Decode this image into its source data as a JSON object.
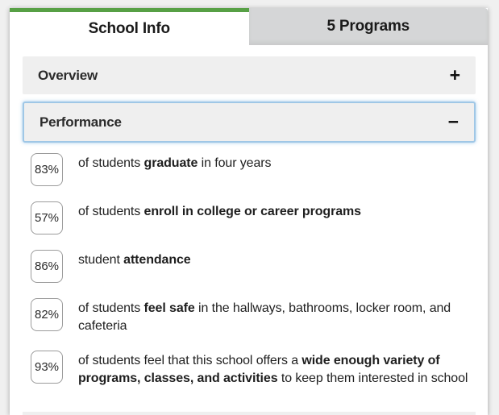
{
  "colors": {
    "accent_green": "#57a045",
    "inactive_tab_bg": "#d5d6d7",
    "page_bg": "#f0f0f0",
    "accordion_header_bg": "#efefef",
    "focus_outline_blue": "#9fc7e6",
    "badge_border": "#9b9b9b",
    "text": "#1f1f1f"
  },
  "tabs": [
    {
      "label": "School Info",
      "active": true
    },
    {
      "label": "5 Programs",
      "active": false
    }
  ],
  "accordion": [
    {
      "label": "Overview",
      "expanded": false,
      "toggle_icon": "+"
    },
    {
      "label": "Performance",
      "expanded": true,
      "toggle_icon": "−"
    }
  ],
  "performance_stats": [
    {
      "value": "83%",
      "parts": [
        {
          "t": "of students ",
          "b": false
        },
        {
          "t": "graduate",
          "b": true
        },
        {
          "t": " in four years",
          "b": false
        }
      ]
    },
    {
      "value": "57%",
      "parts": [
        {
          "t": "of students ",
          "b": false
        },
        {
          "t": "enroll in college or career programs",
          "b": true
        }
      ]
    },
    {
      "value": "86%",
      "parts": [
        {
          "t": "student ",
          "b": false
        },
        {
          "t": "attendance",
          "b": true
        }
      ]
    },
    {
      "value": "82%",
      "parts": [
        {
          "t": "of students ",
          "b": false
        },
        {
          "t": "feel safe",
          "b": true
        },
        {
          "t": " in the hallways, bathrooms, locker room, and cafeteria",
          "b": false
        }
      ]
    },
    {
      "value": "93%",
      "parts": [
        {
          "t": "of students feel that this school offers a ",
          "b": false
        },
        {
          "t": "wide enough variety of programs, classes, and activities",
          "b": true
        },
        {
          "t": " to keep them interested in school",
          "b": false
        }
      ]
    }
  ]
}
